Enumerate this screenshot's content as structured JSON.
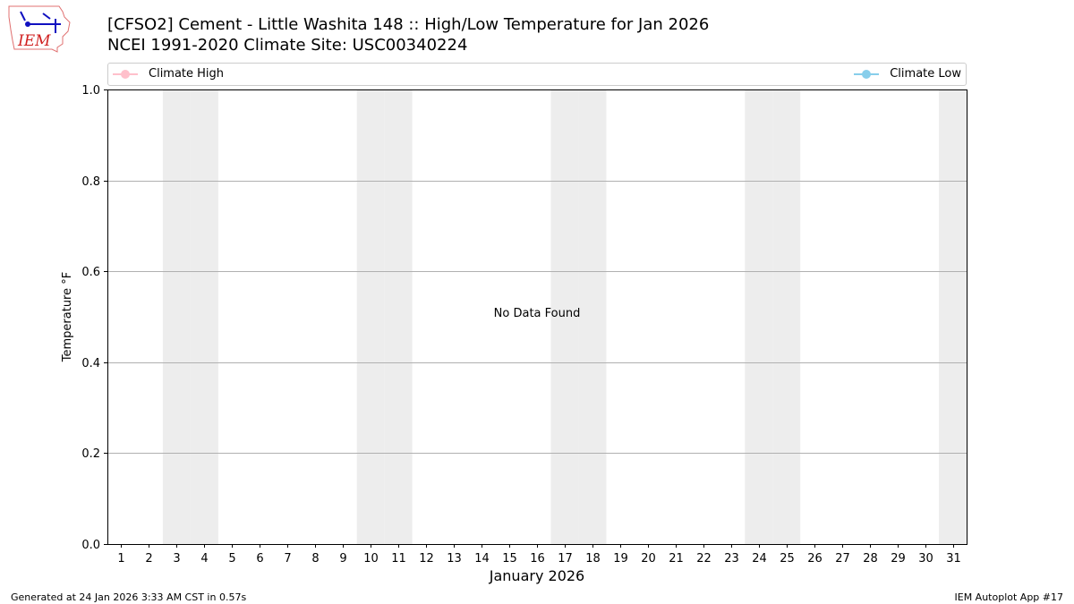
{
  "header": {
    "logo_text": "IEM",
    "title_line1": "[CFSO2] Cement - Little Washita 148 :: High/Low Temperature for Jan 2026",
    "title_line2": "NCEI 1991-2020 Climate Site: USC00340224"
  },
  "footer": {
    "left": "Generated at 24 Jan 2026 3:33 AM CST in 0.57s",
    "right": "IEM Autoplot App #17"
  },
  "chart_data": {
    "type": "line",
    "title": "[CFSO2] Cement - Little Washita 148 :: High/Low Temperature for Jan 2026",
    "xlabel": "January 2026",
    "ylabel": "Temperature °F",
    "xlim": [
      0.5,
      31.5
    ],
    "ylim": [
      0,
      1
    ],
    "x_ticks": [
      "1",
      "2",
      "3",
      "4",
      "5",
      "6",
      "7",
      "8",
      "9",
      "10",
      "11",
      "12",
      "13",
      "14",
      "15",
      "16",
      "17",
      "18",
      "19",
      "20",
      "21",
      "22",
      "23",
      "24",
      "25",
      "26",
      "27",
      "28",
      "29",
      "30",
      "31"
    ],
    "y_ticks": [
      "0.0",
      "0.2",
      "0.4",
      "0.6",
      "0.8",
      "1.0"
    ],
    "y_tick_values": [
      0,
      0.2,
      0.4,
      0.6,
      0.8,
      1.0
    ],
    "grid": "y",
    "weekend_days": [
      3,
      4,
      10,
      11,
      17,
      18,
      24,
      25,
      31
    ],
    "annotation": "No Data Found",
    "legend_placement": "top",
    "series": [
      {
        "name": "Climate High",
        "color": "#ffc0cb",
        "values": []
      },
      {
        "name": "Climate Low",
        "color": "#87ceeb",
        "values": []
      }
    ],
    "shade_color": "#ededed",
    "grid_color": "#b0b0b0"
  }
}
